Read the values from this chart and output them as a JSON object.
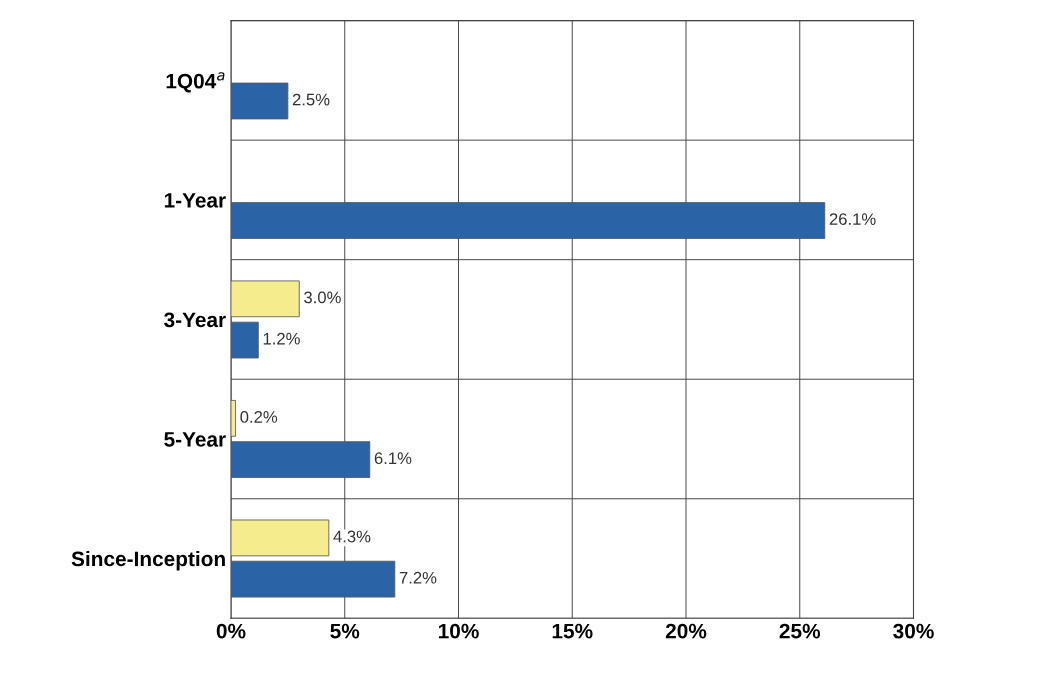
{
  "chart_data": {
    "type": "bar",
    "orientation": "horizontal",
    "categories": [
      "1Q04$^{a}$",
      "1-Year",
      "3-Year",
      "5-Year",
      "Since-Inception"
    ],
    "series": [
      {
        "color": "#f5ec8e",
        "values": [
          null,
          null,
          3.0,
          0.2,
          4.3
        ],
        "value_labels": [
          null,
          null,
          "3.0%",
          "0.2%",
          "4.3%"
        ]
      },
      {
        "color": "#2b64a6",
        "values": [
          2.5,
          26.1,
          1.2,
          6.1,
          7.2
        ],
        "value_labels": [
          "2.5%",
          "26.1%",
          "1.2%",
          "6.1%",
          "7.2%"
        ]
      }
    ],
    "xlim": [
      0,
      30
    ],
    "xticks": [
      {
        "value": 0,
        "label": "0%"
      },
      {
        "value": 5,
        "label": "5%"
      },
      {
        "value": 10,
        "label": "10%"
      },
      {
        "value": 15,
        "label": "15%"
      },
      {
        "value": 20,
        "label": "20%"
      },
      {
        "value": 25,
        "label": "25%"
      },
      {
        "value": 30,
        "label": "30%"
      }
    ],
    "grid": true
  }
}
